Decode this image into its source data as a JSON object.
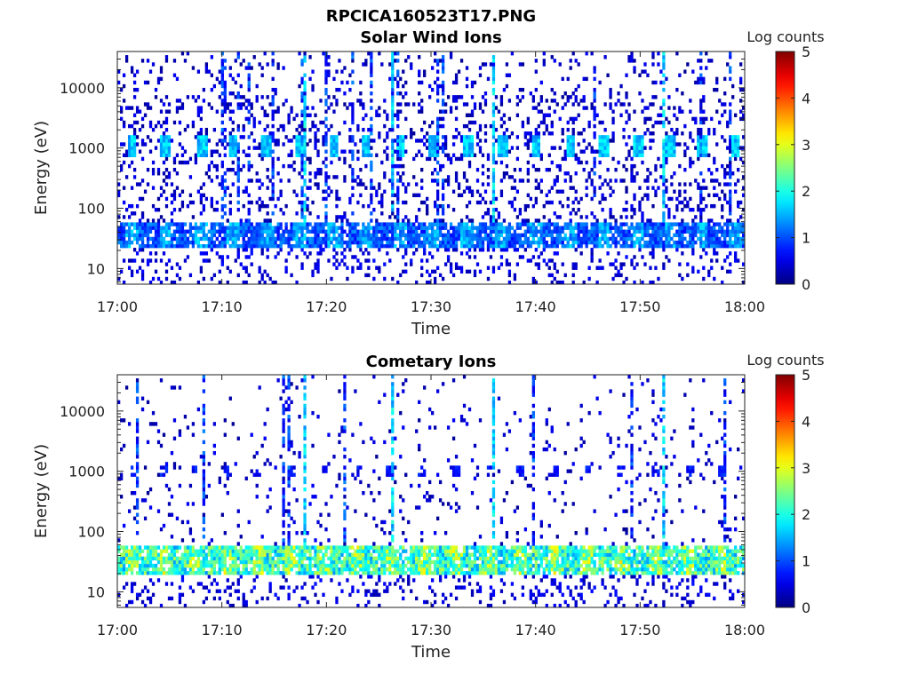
{
  "figure_title": "RPCICA160523T17.PNG",
  "chart_data": [
    {
      "type": "heatmap",
      "title": "Solar Wind Ions",
      "xlabel": "Time",
      "ylabel": "Energy (eV)",
      "x_ticks": [
        "17:00",
        "17:10",
        "17:20",
        "17:30",
        "17:40",
        "17:50",
        "18:00"
      ],
      "x_range_minutes": [
        0,
        60
      ],
      "y_scale": "log",
      "y_range_ev": [
        5.5,
        40000
      ],
      "y_ticks": [
        10,
        100,
        1000,
        10000
      ],
      "y_tick_labels": [
        "10",
        "100",
        "1000",
        "10000"
      ],
      "colorbar": {
        "label": "Log counts",
        "range": [
          0,
          5
        ],
        "ticks": [
          "0",
          "1",
          "2",
          "3",
          "4",
          "5"
        ],
        "colormap": "jet"
      },
      "features": {
        "low_energy_band_ev": [
          22,
          55
        ],
        "low_energy_band_level": 1.2,
        "proton_peaks_ev": 1050,
        "proton_peak_level": 1.7,
        "proton_peak_minutes": [
          1.4,
          4.6,
          8.1,
          11.1,
          14.3,
          17.5,
          20.7,
          23.8,
          27.1,
          30.2,
          33.5,
          36.8,
          40.0,
          43.3,
          46.5,
          49.8,
          52.9,
          55.9,
          59.1
        ],
        "spike_minutes": [
          26.2,
          35.9,
          18.0,
          52.2
        ]
      }
    },
    {
      "type": "heatmap",
      "title": "Cometary Ions",
      "xlabel": "Time",
      "ylabel": "Energy (eV)",
      "x_ticks": [
        "17:00",
        "17:10",
        "17:20",
        "17:30",
        "17:40",
        "17:50",
        "18:00"
      ],
      "x_range_minutes": [
        0,
        60
      ],
      "y_scale": "log",
      "y_range_ev": [
        5.5,
        40000
      ],
      "y_ticks": [
        10,
        100,
        1000,
        10000
      ],
      "y_tick_labels": [
        "10",
        "100",
        "1000",
        "10000"
      ],
      "colorbar": {
        "label": "Log counts",
        "range": [
          0,
          5
        ],
        "ticks": [
          "0",
          "1",
          "2",
          "3",
          "4",
          "5"
        ],
        "colormap": "jet"
      },
      "features": {
        "low_energy_band_ev": [
          18,
          60
        ],
        "low_energy_band_level": 2.4,
        "pulse_minutes": [
          1.6,
          4.4,
          7.4,
          10.4,
          13.5,
          16.6,
          19.8,
          22.9,
          26.0,
          29.2,
          32.4,
          35.6,
          38.6,
          41.9,
          45.0,
          48.2,
          51.5,
          54.7,
          57.8
        ],
        "spike_minutes": [
          26.2,
          35.9,
          18.0,
          52.2
        ]
      }
    }
  ]
}
